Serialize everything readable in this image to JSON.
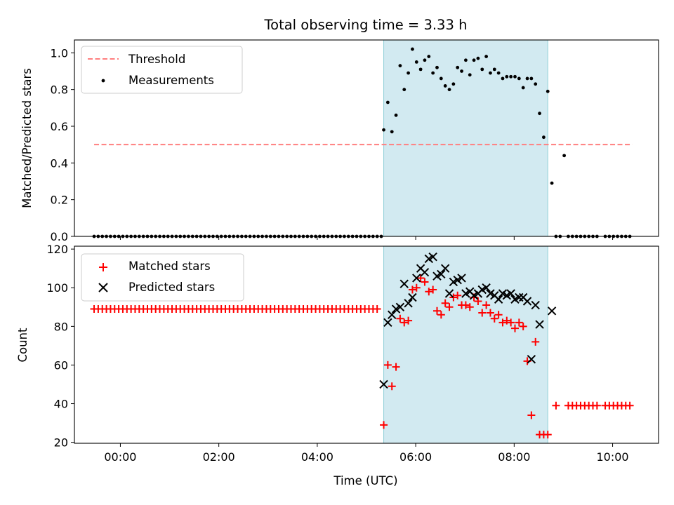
{
  "title": "Total observing time = 3.33 h",
  "colors": {
    "threshold": "#ff7f7f",
    "measurements": "#000000",
    "matched": "#ff0000",
    "predicted": "#000000",
    "span": "#add8e6"
  },
  "chart_data": [
    {
      "type": "scatter",
      "panel": "top",
      "ylabel": "Matched/Predicted stars",
      "xlabel": "",
      "ylim": [
        0,
        1.07
      ],
      "yticks": [
        0.0,
        0.2,
        0.4,
        0.6,
        0.8,
        1.0
      ],
      "ytick_labels": [
        "0.0",
        "0.2",
        "0.4",
        "0.6",
        "0.8",
        "1.0"
      ],
      "xlim": [
        "-00:56",
        "10:56"
      ],
      "xticks": [
        "00:00",
        "02:00",
        "04:00",
        "06:00",
        "08:00",
        "10:00"
      ],
      "span": {
        "from": "05:21",
        "to": "08:41"
      },
      "legend": {
        "position": "upper left",
        "entries": [
          "Threshold",
          "Measurements"
        ]
      },
      "series": [
        {
          "name": "Threshold",
          "kind": "dashed-line",
          "x": [
            "-00:32",
            "10:24"
          ],
          "y": [
            0.5,
            0.5
          ]
        },
        {
          "name": "Measurements",
          "kind": "points",
          "points": [
            [
              "-00:32",
              0
            ],
            [
              "-00:27",
              0
            ],
            [
              "-00:22",
              0
            ],
            [
              "-00:17",
              0
            ],
            [
              "-00:12",
              0
            ],
            [
              "-00:07",
              0
            ],
            [
              "-00:02",
              0
            ],
            [
              "00:03",
              0
            ],
            [
              "00:08",
              0
            ],
            [
              "00:13",
              0
            ],
            [
              "00:18",
              0
            ],
            [
              "00:23",
              0
            ],
            [
              "00:28",
              0
            ],
            [
              "00:33",
              0
            ],
            [
              "00:38",
              0
            ],
            [
              "00:43",
              0
            ],
            [
              "00:48",
              0
            ],
            [
              "00:53",
              0
            ],
            [
              "00:58",
              0
            ],
            [
              "01:03",
              0
            ],
            [
              "01:08",
              0
            ],
            [
              "01:13",
              0
            ],
            [
              "01:18",
              0
            ],
            [
              "01:23",
              0
            ],
            [
              "01:28",
              0
            ],
            [
              "01:33",
              0
            ],
            [
              "01:38",
              0
            ],
            [
              "01:43",
              0
            ],
            [
              "01:48",
              0
            ],
            [
              "01:53",
              0
            ],
            [
              "01:58",
              0
            ],
            [
              "02:03",
              0
            ],
            [
              "02:08",
              0
            ],
            [
              "02:13",
              0
            ],
            [
              "02:18",
              0
            ],
            [
              "02:23",
              0
            ],
            [
              "02:28",
              0
            ],
            [
              "02:33",
              0
            ],
            [
              "02:38",
              0
            ],
            [
              "02:43",
              0
            ],
            [
              "02:48",
              0
            ],
            [
              "02:53",
              0
            ],
            [
              "02:58",
              0
            ],
            [
              "03:03",
              0
            ],
            [
              "03:08",
              0
            ],
            [
              "03:13",
              0
            ],
            [
              "03:18",
              0
            ],
            [
              "03:23",
              0
            ],
            [
              "03:28",
              0
            ],
            [
              "03:33",
              0
            ],
            [
              "03:38",
              0
            ],
            [
              "03:43",
              0
            ],
            [
              "03:48",
              0
            ],
            [
              "03:53",
              0
            ],
            [
              "03:58",
              0
            ],
            [
              "04:03",
              0
            ],
            [
              "04:08",
              0
            ],
            [
              "04:13",
              0
            ],
            [
              "04:18",
              0
            ],
            [
              "04:23",
              0
            ],
            [
              "04:28",
              0
            ],
            [
              "04:33",
              0
            ],
            [
              "04:38",
              0
            ],
            [
              "04:43",
              0
            ],
            [
              "04:48",
              0
            ],
            [
              "04:53",
              0
            ],
            [
              "04:58",
              0
            ],
            [
              "05:03",
              0
            ],
            [
              "05:08",
              0
            ],
            [
              "05:13",
              0
            ],
            [
              "05:18",
              0
            ],
            [
              "05:21",
              0.58
            ],
            [
              "05:26",
              0.73
            ],
            [
              "05:31",
              0.57
            ],
            [
              "05:36",
              0.66
            ],
            [
              "05:41",
              0.93
            ],
            [
              "05:46",
              0.8
            ],
            [
              "05:51",
              0.89
            ],
            [
              "05:56",
              1.02
            ],
            [
              "06:01",
              0.95
            ],
            [
              "06:06",
              0.91
            ],
            [
              "06:11",
              0.96
            ],
            [
              "06:16",
              0.98
            ],
            [
              "06:21",
              0.89
            ],
            [
              "06:26",
              0.92
            ],
            [
              "06:31",
              0.86
            ],
            [
              "06:36",
              0.82
            ],
            [
              "06:41",
              0.8
            ],
            [
              "06:46",
              0.83
            ],
            [
              "06:51",
              0.92
            ],
            [
              "06:56",
              0.9
            ],
            [
              "07:01",
              0.96
            ],
            [
              "07:06",
              0.88
            ],
            [
              "07:11",
              0.96
            ],
            [
              "07:16",
              0.97
            ],
            [
              "07:21",
              0.91
            ],
            [
              "07:26",
              0.98
            ],
            [
              "07:31",
              0.89
            ],
            [
              "07:36",
              0.91
            ],
            [
              "07:41",
              0.89
            ],
            [
              "07:46",
              0.86
            ],
            [
              "07:51",
              0.87
            ],
            [
              "07:56",
              0.87
            ],
            [
              "08:01",
              0.87
            ],
            [
              "08:06",
              0.86
            ],
            [
              "08:11",
              0.81
            ],
            [
              "08:16",
              0.86
            ],
            [
              "08:21",
              0.86
            ],
            [
              "08:26",
              0.83
            ],
            [
              "08:31",
              0.67
            ],
            [
              "08:36",
              0.54
            ],
            [
              "08:41",
              0.79
            ],
            [
              "08:46",
              0.29
            ],
            [
              "08:51",
              0
            ],
            [
              "08:56",
              0
            ],
            [
              "09:01",
              0.44
            ],
            [
              "09:06",
              0
            ],
            [
              "09:11",
              0
            ],
            [
              "09:16",
              0
            ],
            [
              "09:21",
              0
            ],
            [
              "09:26",
              0
            ],
            [
              "09:31",
              0
            ],
            [
              "09:36",
              0
            ],
            [
              "09:41",
              0
            ],
            [
              "09:51",
              0
            ],
            [
              "09:56",
              0
            ],
            [
              "10:01",
              0
            ],
            [
              "10:06",
              0
            ],
            [
              "10:11",
              0
            ],
            [
              "10:16",
              0
            ],
            [
              "10:21",
              0
            ]
          ]
        }
      ]
    },
    {
      "type": "scatter",
      "panel": "bottom",
      "ylabel": "Count",
      "xlabel": "Time (UTC)",
      "ylim": [
        19.5,
        121.5
      ],
      "yticks": [
        20,
        40,
        60,
        80,
        100,
        120
      ],
      "ytick_labels": [
        "20",
        "40",
        "60",
        "80",
        "100",
        "120"
      ],
      "xlim": [
        "-00:56",
        "10:56"
      ],
      "xticks": [
        "00:00",
        "02:00",
        "04:00",
        "06:00",
        "08:00",
        "10:00"
      ],
      "xtick_labels": [
        "00:00",
        "02:00",
        "04:00",
        "06:00",
        "08:00",
        "10:00"
      ],
      "span": {
        "from": "05:21",
        "to": "08:41"
      },
      "legend": {
        "position": "upper left",
        "entries": [
          "Matched stars",
          "Predicted stars"
        ]
      },
      "series": [
        {
          "name": "Matched stars",
          "kind": "plus",
          "flat_runs": [
            {
              "from": "-00:32",
              "to": "05:13",
              "step_min": 5,
              "y": 89
            },
            {
              "from": "09:06",
              "to": "09:41",
              "step_min": 5,
              "y": 39
            },
            {
              "from": "09:51",
              "to": "10:21",
              "step_min": 5,
              "y": 39
            }
          ],
          "points": [
            [
              "05:21",
              29
            ],
            [
              "05:26",
              60
            ],
            [
              "05:31",
              49
            ],
            [
              "05:36",
              59
            ],
            [
              "05:41",
              84
            ],
            [
              "05:46",
              82
            ],
            [
              "05:51",
              83
            ],
            [
              "05:56",
              99
            ],
            [
              "06:01",
              100
            ],
            [
              "06:06",
              105
            ],
            [
              "06:11",
              103
            ],
            [
              "06:16",
              98
            ],
            [
              "06:21",
              99
            ],
            [
              "06:26",
              88
            ],
            [
              "06:31",
              86
            ],
            [
              "06:36",
              92
            ],
            [
              "06:41",
              90
            ],
            [
              "06:46",
              95
            ],
            [
              "06:51",
              96
            ],
            [
              "06:56",
              91
            ],
            [
              "07:01",
              91
            ],
            [
              "07:06",
              90
            ],
            [
              "07:11",
              95
            ],
            [
              "07:16",
              93
            ],
            [
              "07:21",
              87
            ],
            [
              "07:26",
              91
            ],
            [
              "07:31",
              87
            ],
            [
              "07:36",
              84
            ],
            [
              "07:41",
              86
            ],
            [
              "07:46",
              82
            ],
            [
              "07:51",
              83
            ],
            [
              "07:56",
              82
            ],
            [
              "08:01",
              79
            ],
            [
              "08:06",
              82
            ],
            [
              "08:11",
              80
            ],
            [
              "08:16",
              62
            ],
            [
              "08:21",
              34
            ],
            [
              "08:26",
              72
            ],
            [
              "08:31",
              24
            ],
            [
              "08:36",
              24
            ],
            [
              "08:41",
              24
            ],
            [
              "08:51",
              39
            ]
          ]
        },
        {
          "name": "Predicted stars",
          "kind": "x",
          "points": [
            [
              "05:21",
              50
            ],
            [
              "05:26",
              82
            ],
            [
              "05:31",
              86
            ],
            [
              "05:36",
              89
            ],
            [
              "05:41",
              90
            ],
            [
              "05:46",
              102
            ],
            [
              "05:51",
              92
            ],
            [
              "05:56",
              95
            ],
            [
              "06:01",
              105
            ],
            [
              "06:06",
              110
            ],
            [
              "06:11",
              108
            ],
            [
              "06:16",
              115
            ],
            [
              "06:21",
              116
            ],
            [
              "06:26",
              106
            ],
            [
              "06:31",
              107
            ],
            [
              "06:36",
              110
            ],
            [
              "06:41",
              97
            ],
            [
              "06:46",
              103
            ],
            [
              "06:51",
              104
            ],
            [
              "06:56",
              105
            ],
            [
              "07:01",
              97
            ],
            [
              "07:06",
              98
            ],
            [
              "07:11",
              96
            ],
            [
              "07:16",
              97
            ],
            [
              "07:21",
              99
            ],
            [
              "07:26",
              100
            ],
            [
              "07:31",
              97
            ],
            [
              "07:36",
              96
            ],
            [
              "07:41",
              94
            ],
            [
              "07:46",
              97
            ],
            [
              "07:51",
              96
            ],
            [
              "07:56",
              97
            ],
            [
              "08:01",
              94
            ],
            [
              "08:06",
              95
            ],
            [
              "08:11",
              95
            ],
            [
              "08:16",
              93
            ],
            [
              "08:21",
              63
            ],
            [
              "08:26",
              91
            ],
            [
              "08:31",
              81
            ],
            [
              "08:46",
              88
            ]
          ]
        }
      ]
    }
  ]
}
